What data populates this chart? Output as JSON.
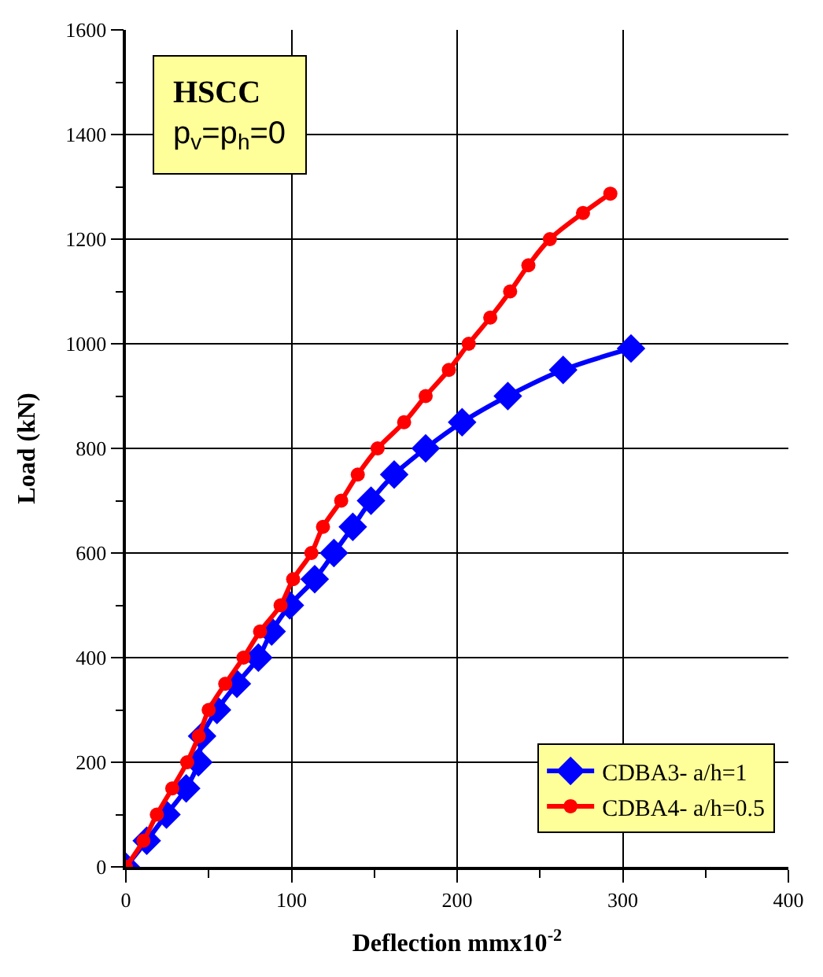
{
  "chart_data": {
    "type": "line",
    "xlabel": "Deflection mmx10$^{-2}$",
    "ylabel": "Load (kN)",
    "xlim": [
      0,
      400
    ],
    "xticks": [
      0,
      100,
      200,
      300,
      400
    ],
    "ylim": [
      0,
      1600
    ],
    "yticks": [
      0,
      200,
      400,
      600,
      800,
      1000,
      1200,
      1400,
      1600
    ],
    "grid": true,
    "legend": "bottom right",
    "annotations": [
      "HSCC",
      "p$_{v}$=p$_{h}$=0"
    ],
    "series": [
      {
        "name": "CDBA3- a/h=1",
        "color": "#0000ff",
        "marker": "diamond",
        "x": [
          0,
          12.6,
          24.5,
          36.4,
          43.8,
          46,
          55,
          67,
          80,
          88,
          99,
          114,
          125.6,
          137,
          148,
          162,
          181,
          203,
          230.6,
          264,
          305
        ],
        "values": [
          0,
          50,
          100,
          150,
          200,
          250,
          300,
          350,
          400,
          450,
          500,
          550,
          600,
          650,
          700,
          750,
          800,
          850,
          900,
          950,
          991
        ]
      },
      {
        "name": "CDBA4- a/h=0.5",
        "color": "#ff0000",
        "marker": "circle",
        "x": [
          0,
          10.6,
          18.7,
          28,
          37,
          44,
          50,
          60,
          71,
          81,
          93.4,
          101,
          112,
          119,
          130,
          140,
          152,
          168,
          181,
          195,
          207,
          220,
          232,
          243,
          256,
          276,
          292.5
        ],
        "values": [
          0,
          50,
          100,
          150,
          200,
          250,
          300,
          350,
          400,
          450,
          500,
          550,
          600,
          650,
          700,
          750,
          800,
          850,
          900,
          950,
          1000,
          1050,
          1100,
          1150,
          1200,
          1250,
          1287
        ]
      }
    ]
  }
}
